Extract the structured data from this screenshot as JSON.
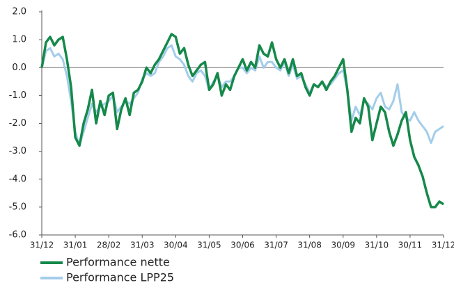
{
  "chart_data": {
    "type": "line",
    "categories": [
      "31/12",
      null,
      null,
      null,
      null,
      null,
      null,
      null,
      "31/01",
      null,
      null,
      null,
      null,
      null,
      null,
      null,
      "28/02",
      null,
      null,
      null,
      null,
      null,
      null,
      null,
      "31/03",
      null,
      null,
      null,
      null,
      null,
      null,
      null,
      "30/04",
      null,
      null,
      null,
      null,
      null,
      null,
      null,
      "31/05",
      null,
      null,
      null,
      null,
      null,
      null,
      null,
      "30/06",
      null,
      null,
      null,
      null,
      null,
      null,
      null,
      "31/07",
      null,
      null,
      null,
      null,
      null,
      null,
      null,
      "31/08",
      null,
      null,
      null,
      null,
      null,
      null,
      null,
      "30/09",
      null,
      null,
      null,
      null,
      null,
      null,
      null,
      "31/10",
      null,
      null,
      null,
      null,
      null,
      null,
      null,
      "30/11",
      null,
      null,
      null,
      null,
      null,
      null,
      null,
      "31/12"
    ],
    "series": [
      {
        "name": "Performance nette",
        "color": "#15894a",
        "values": [
          0.0,
          0.9,
          1.1,
          0.8,
          1.0,
          1.1,
          0.3,
          -0.7,
          -2.5,
          -2.8,
          -2.0,
          -1.5,
          -0.8,
          -2.0,
          -1.2,
          -1.7,
          -1.0,
          -0.9,
          -2.2,
          -1.5,
          -1.1,
          -1.7,
          -0.9,
          -0.8,
          -0.5,
          0.0,
          -0.2,
          0.1,
          0.3,
          0.6,
          0.9,
          1.2,
          1.1,
          0.5,
          0.7,
          0.1,
          -0.3,
          -0.1,
          0.1,
          0.2,
          -0.8,
          -0.6,
          -0.2,
          -1.0,
          -0.6,
          -0.8,
          -0.3,
          0.0,
          0.3,
          -0.1,
          0.2,
          0.0,
          0.8,
          0.5,
          0.4,
          0.9,
          0.3,
          0.0,
          0.3,
          -0.2,
          0.3,
          -0.3,
          -0.2,
          -0.7,
          -1.0,
          -0.6,
          -0.7,
          -0.5,
          -0.8,
          -0.5,
          -0.3,
          0.0,
          0.3,
          -0.8,
          -2.3,
          -1.8,
          -2.0,
          -1.1,
          -1.4,
          -2.6,
          -2.0,
          -1.4,
          -1.6,
          -2.3,
          -2.8,
          -2.4,
          -1.9,
          -1.6,
          -2.6,
          -3.2,
          -3.5,
          -3.9,
          -4.5,
          -5.0,
          -5.0,
          -4.8,
          -4.9
        ]
      },
      {
        "name": "Performance LPP25",
        "color": "#a3cdea",
        "values": [
          0.0,
          0.6,
          0.7,
          0.4,
          0.5,
          0.3,
          -0.3,
          -1.2,
          -2.3,
          -2.8,
          -2.3,
          -1.8,
          -1.3,
          -1.6,
          -1.4,
          -1.3,
          -1.2,
          -1.0,
          -1.6,
          -1.4,
          -1.2,
          -1.3,
          -1.1,
          -0.9,
          -0.4,
          -0.2,
          -0.3,
          -0.2,
          0.2,
          0.4,
          0.7,
          0.8,
          0.4,
          0.3,
          0.1,
          -0.3,
          -0.5,
          -0.2,
          -0.1,
          -0.3,
          -0.8,
          -0.5,
          -0.3,
          -0.7,
          -0.5,
          -0.5,
          -0.3,
          0.0,
          0.0,
          -0.2,
          0.0,
          -0.1,
          0.4,
          0.0,
          0.2,
          0.2,
          0.0,
          -0.1,
          0.2,
          -0.3,
          0.1,
          -0.4,
          -0.3,
          -0.6,
          -0.9,
          -0.6,
          -0.7,
          -0.5,
          -0.7,
          -0.6,
          -0.4,
          -0.2,
          -0.1,
          -0.8,
          -1.9,
          -1.4,
          -1.7,
          -1.2,
          -1.3,
          -1.5,
          -1.1,
          -0.9,
          -1.4,
          -1.5,
          -1.2,
          -0.6,
          -1.6,
          -1.8,
          -1.9,
          -1.6,
          -1.9,
          -2.1,
          -2.3,
          -2.7,
          -2.3,
          -2.2,
          -2.1
        ]
      }
    ],
    "ylim": [
      -6,
      2
    ],
    "yticks": [
      {
        "value": -6,
        "label": "-6.0"
      },
      {
        "value": -5,
        "label": "-5.0"
      },
      {
        "value": -4,
        "label": "-4.0"
      },
      {
        "value": -3,
        "label": "-3.0"
      },
      {
        "value": -2,
        "label": "-2.0"
      },
      {
        "value": -1,
        "label": "-1.0"
      },
      {
        "value": 0,
        "label": "0.0"
      },
      {
        "value": 1,
        "label": "1.0"
      },
      {
        "value": 2,
        "label": "2.0"
      }
    ],
    "grid": false,
    "legend": "bottom-left"
  }
}
